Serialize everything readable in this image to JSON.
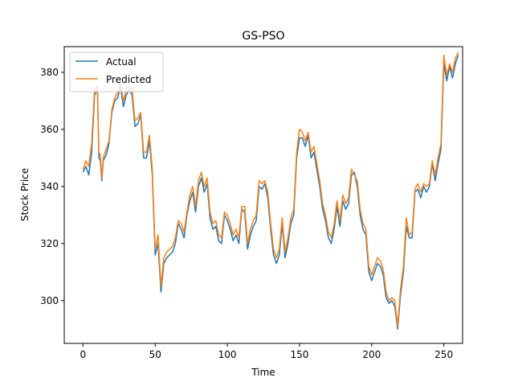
{
  "chart_data": {
    "type": "line",
    "title": "GS-PSO",
    "xlabel": "Time",
    "ylabel": "Stock Price",
    "xlim": [
      -13,
      263
    ],
    "ylim": [
      285,
      389
    ],
    "xticks": [
      0,
      50,
      100,
      150,
      200,
      250
    ],
    "yticks": [
      300,
      320,
      340,
      360,
      380
    ],
    "grid": false,
    "legend_position": "upper-left",
    "series": [
      {
        "name": "Actual",
        "color": "#1f77b4",
        "points": [
          [
            0,
            345
          ],
          [
            2,
            347
          ],
          [
            4,
            344
          ],
          [
            6,
            352
          ],
          [
            8,
            372
          ],
          [
            10,
            374
          ],
          [
            11,
            350
          ],
          [
            12,
            349
          ],
          [
            13,
            342
          ],
          [
            14,
            349
          ],
          [
            16,
            351
          ],
          [
            18,
            355
          ],
          [
            20,
            366
          ],
          [
            22,
            370
          ],
          [
            24,
            371
          ],
          [
            26,
            375
          ],
          [
            28,
            368
          ],
          [
            30,
            372
          ],
          [
            32,
            374
          ],
          [
            34,
            372
          ],
          [
            36,
            361
          ],
          [
            38,
            362
          ],
          [
            40,
            365
          ],
          [
            42,
            350
          ],
          [
            44,
            350
          ],
          [
            46,
            356
          ],
          [
            48,
            344
          ],
          [
            50,
            316
          ],
          [
            52,
            320
          ],
          [
            54,
            303
          ],
          [
            56,
            313
          ],
          [
            58,
            315
          ],
          [
            60,
            316
          ],
          [
            62,
            317
          ],
          [
            64,
            320
          ],
          [
            66,
            327
          ],
          [
            68,
            325
          ],
          [
            70,
            322
          ],
          [
            72,
            330
          ],
          [
            74,
            335
          ],
          [
            76,
            338
          ],
          [
            78,
            331
          ],
          [
            80,
            340
          ],
          [
            82,
            343
          ],
          [
            84,
            338
          ],
          [
            86,
            341
          ],
          [
            88,
            329
          ],
          [
            90,
            325
          ],
          [
            92,
            326
          ],
          [
            94,
            321
          ],
          [
            96,
            320
          ],
          [
            98,
            330
          ],
          [
            100,
            328
          ],
          [
            102,
            325
          ],
          [
            104,
            321
          ],
          [
            106,
            323
          ],
          [
            108,
            320
          ],
          [
            110,
            332
          ],
          [
            112,
            331
          ],
          [
            114,
            318
          ],
          [
            116,
            323
          ],
          [
            118,
            326
          ],
          [
            120,
            328
          ],
          [
            122,
            340
          ],
          [
            124,
            339
          ],
          [
            126,
            341
          ],
          [
            128,
            336
          ],
          [
            130,
            325
          ],
          [
            132,
            316
          ],
          [
            134,
            313
          ],
          [
            136,
            316
          ],
          [
            138,
            327
          ],
          [
            140,
            315
          ],
          [
            142,
            320
          ],
          [
            144,
            327
          ],
          [
            146,
            330
          ],
          [
            148,
            350
          ],
          [
            150,
            357
          ],
          [
            152,
            357
          ],
          [
            154,
            354
          ],
          [
            156,
            358
          ],
          [
            158,
            350
          ],
          [
            160,
            352
          ],
          [
            162,
            346
          ],
          [
            164,
            340
          ],
          [
            166,
            332
          ],
          [
            168,
            328
          ],
          [
            170,
            322
          ],
          [
            172,
            320
          ],
          [
            174,
            325
          ],
          [
            176,
            333
          ],
          [
            178,
            326
          ],
          [
            180,
            335
          ],
          [
            182,
            332
          ],
          [
            184,
            334
          ],
          [
            186,
            344
          ],
          [
            188,
            345
          ],
          [
            190,
            340
          ],
          [
            192,
            330
          ],
          [
            194,
            325
          ],
          [
            196,
            323
          ],
          [
            198,
            310
          ],
          [
            200,
            307
          ],
          [
            202,
            310
          ],
          [
            204,
            313
          ],
          [
            206,
            312
          ],
          [
            208,
            309
          ],
          [
            210,
            301
          ],
          [
            212,
            299
          ],
          [
            214,
            300
          ],
          [
            216,
            298
          ],
          [
            218,
            290
          ],
          [
            220,
            302
          ],
          [
            222,
            310
          ],
          [
            224,
            326
          ],
          [
            226,
            322
          ],
          [
            228,
            322
          ],
          [
            230,
            338
          ],
          [
            232,
            339
          ],
          [
            234,
            336
          ],
          [
            236,
            340
          ],
          [
            238,
            338
          ],
          [
            240,
            340
          ],
          [
            242,
            348
          ],
          [
            244,
            342
          ],
          [
            246,
            348
          ],
          [
            248,
            353
          ],
          [
            250,
            383
          ],
          [
            252,
            377
          ],
          [
            254,
            382
          ],
          [
            256,
            378
          ],
          [
            258,
            383
          ],
          [
            260,
            386
          ]
        ]
      },
      {
        "name": "Predicted",
        "color": "#ff7f0e",
        "points": [
          [
            0,
            346
          ],
          [
            2,
            349
          ],
          [
            4,
            347
          ],
          [
            6,
            355
          ],
          [
            8,
            374
          ],
          [
            10,
            375
          ],
          [
            11,
            352
          ],
          [
            12,
            351
          ],
          [
            13,
            343
          ],
          [
            14,
            350
          ],
          [
            16,
            353
          ],
          [
            18,
            356
          ],
          [
            20,
            367
          ],
          [
            22,
            371
          ],
          [
            24,
            373
          ],
          [
            26,
            376
          ],
          [
            28,
            370
          ],
          [
            30,
            374
          ],
          [
            32,
            375
          ],
          [
            34,
            374
          ],
          [
            36,
            363
          ],
          [
            38,
            364
          ],
          [
            40,
            366
          ],
          [
            42,
            352
          ],
          [
            44,
            352
          ],
          [
            46,
            358
          ],
          [
            48,
            346
          ],
          [
            50,
            318
          ],
          [
            52,
            323
          ],
          [
            54,
            305
          ],
          [
            56,
            315
          ],
          [
            58,
            317
          ],
          [
            60,
            318
          ],
          [
            62,
            319
          ],
          [
            64,
            322
          ],
          [
            66,
            328
          ],
          [
            68,
            327
          ],
          [
            70,
            324
          ],
          [
            72,
            331
          ],
          [
            74,
            337
          ],
          [
            76,
            340
          ],
          [
            78,
            333
          ],
          [
            80,
            342
          ],
          [
            82,
            345
          ],
          [
            84,
            340
          ],
          [
            86,
            343
          ],
          [
            88,
            331
          ],
          [
            90,
            327
          ],
          [
            92,
            328
          ],
          [
            94,
            323
          ],
          [
            96,
            322
          ],
          [
            98,
            331
          ],
          [
            100,
            330
          ],
          [
            102,
            327
          ],
          [
            104,
            323
          ],
          [
            106,
            325
          ],
          [
            108,
            322
          ],
          [
            110,
            333
          ],
          [
            112,
            333
          ],
          [
            114,
            320
          ],
          [
            116,
            325
          ],
          [
            118,
            328
          ],
          [
            120,
            330
          ],
          [
            122,
            342
          ],
          [
            124,
            341
          ],
          [
            126,
            342
          ],
          [
            128,
            338
          ],
          [
            130,
            327
          ],
          [
            132,
            318
          ],
          [
            134,
            315
          ],
          [
            136,
            318
          ],
          [
            138,
            329
          ],
          [
            140,
            317
          ],
          [
            142,
            322
          ],
          [
            144,
            329
          ],
          [
            146,
            332
          ],
          [
            148,
            352
          ],
          [
            150,
            360
          ],
          [
            152,
            359
          ],
          [
            154,
            356
          ],
          [
            156,
            359
          ],
          [
            158,
            352
          ],
          [
            160,
            354
          ],
          [
            162,
            348
          ],
          [
            164,
            342
          ],
          [
            166,
            334
          ],
          [
            168,
            330
          ],
          [
            170,
            324
          ],
          [
            172,
            322
          ],
          [
            174,
            327
          ],
          [
            176,
            335
          ],
          [
            178,
            328
          ],
          [
            180,
            337
          ],
          [
            182,
            334
          ],
          [
            184,
            336
          ],
          [
            186,
            346
          ],
          [
            188,
            344
          ],
          [
            190,
            342
          ],
          [
            192,
            332
          ],
          [
            194,
            327
          ],
          [
            196,
            325
          ],
          [
            198,
            312
          ],
          [
            200,
            309
          ],
          [
            202,
            312
          ],
          [
            204,
            315
          ],
          [
            206,
            314
          ],
          [
            208,
            311
          ],
          [
            210,
            303
          ],
          [
            212,
            300
          ],
          [
            214,
            301
          ],
          [
            216,
            300
          ],
          [
            218,
            291
          ],
          [
            220,
            304
          ],
          [
            222,
            312
          ],
          [
            224,
            329
          ],
          [
            226,
            323
          ],
          [
            228,
            324
          ],
          [
            230,
            339
          ],
          [
            232,
            341
          ],
          [
            234,
            338
          ],
          [
            236,
            341
          ],
          [
            238,
            340
          ],
          [
            240,
            341
          ],
          [
            242,
            349
          ],
          [
            244,
            344
          ],
          [
            246,
            350
          ],
          [
            248,
            355
          ],
          [
            250,
            386
          ],
          [
            252,
            379
          ],
          [
            254,
            383
          ],
          [
            256,
            380
          ],
          [
            258,
            385
          ],
          [
            260,
            387
          ]
        ]
      }
    ]
  }
}
